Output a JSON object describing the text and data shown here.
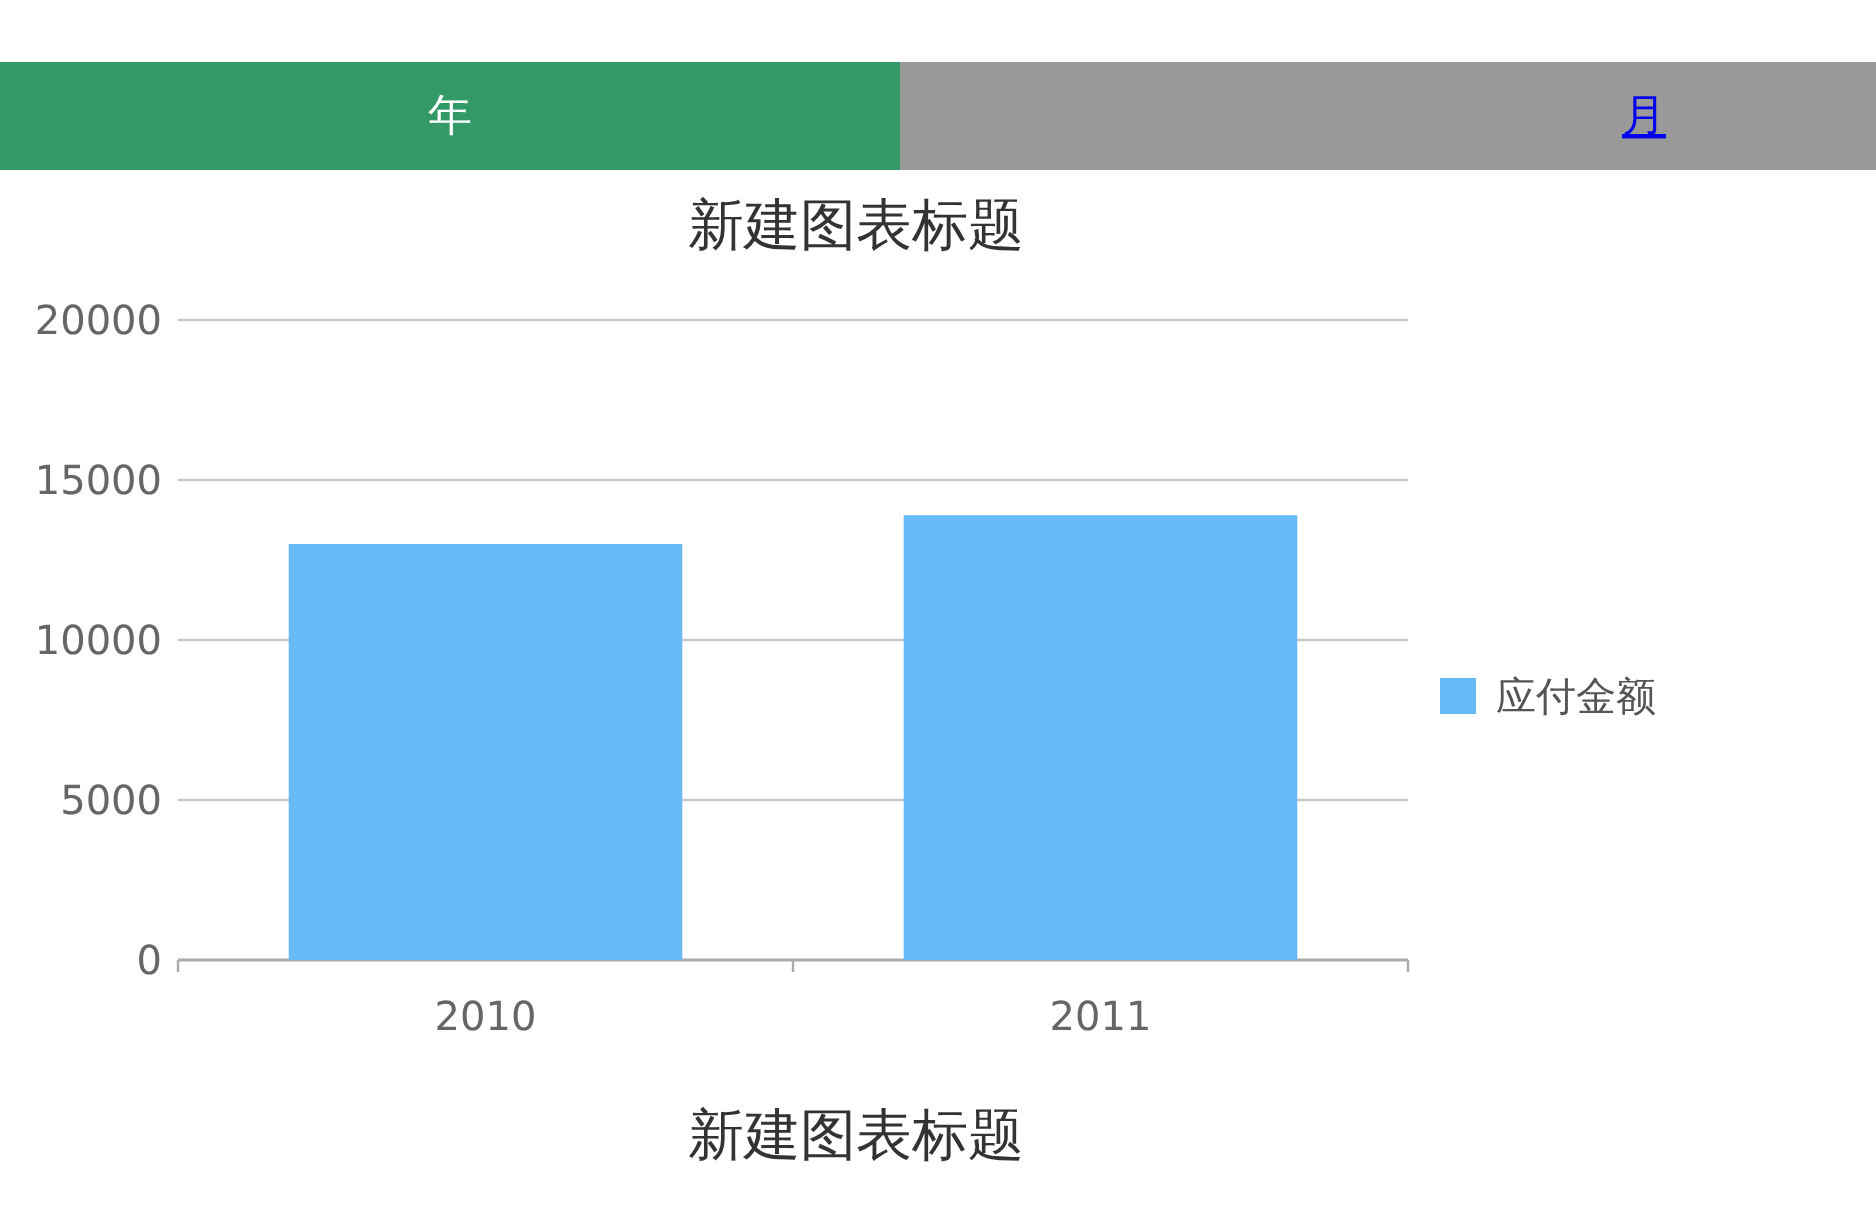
{
  "chart_data": [
    {
      "type": "bar",
      "title": "新建图表标题",
      "annotations": [
        "年",
        "月"
      ],
      "categories": [
        "2010",
        "2011"
      ],
      "series": [
        {
          "name": "应付金额",
          "color": "#66bbf7",
          "values": [
            13000,
            13900
          ]
        }
      ],
      "ylim": [
        0,
        20000
      ],
      "yticks": [
        0,
        5000,
        10000,
        15000,
        20000
      ],
      "grid": "y",
      "legend": "right"
    },
    {
      "type": "other",
      "title": "新建图表标题"
    }
  ]
}
